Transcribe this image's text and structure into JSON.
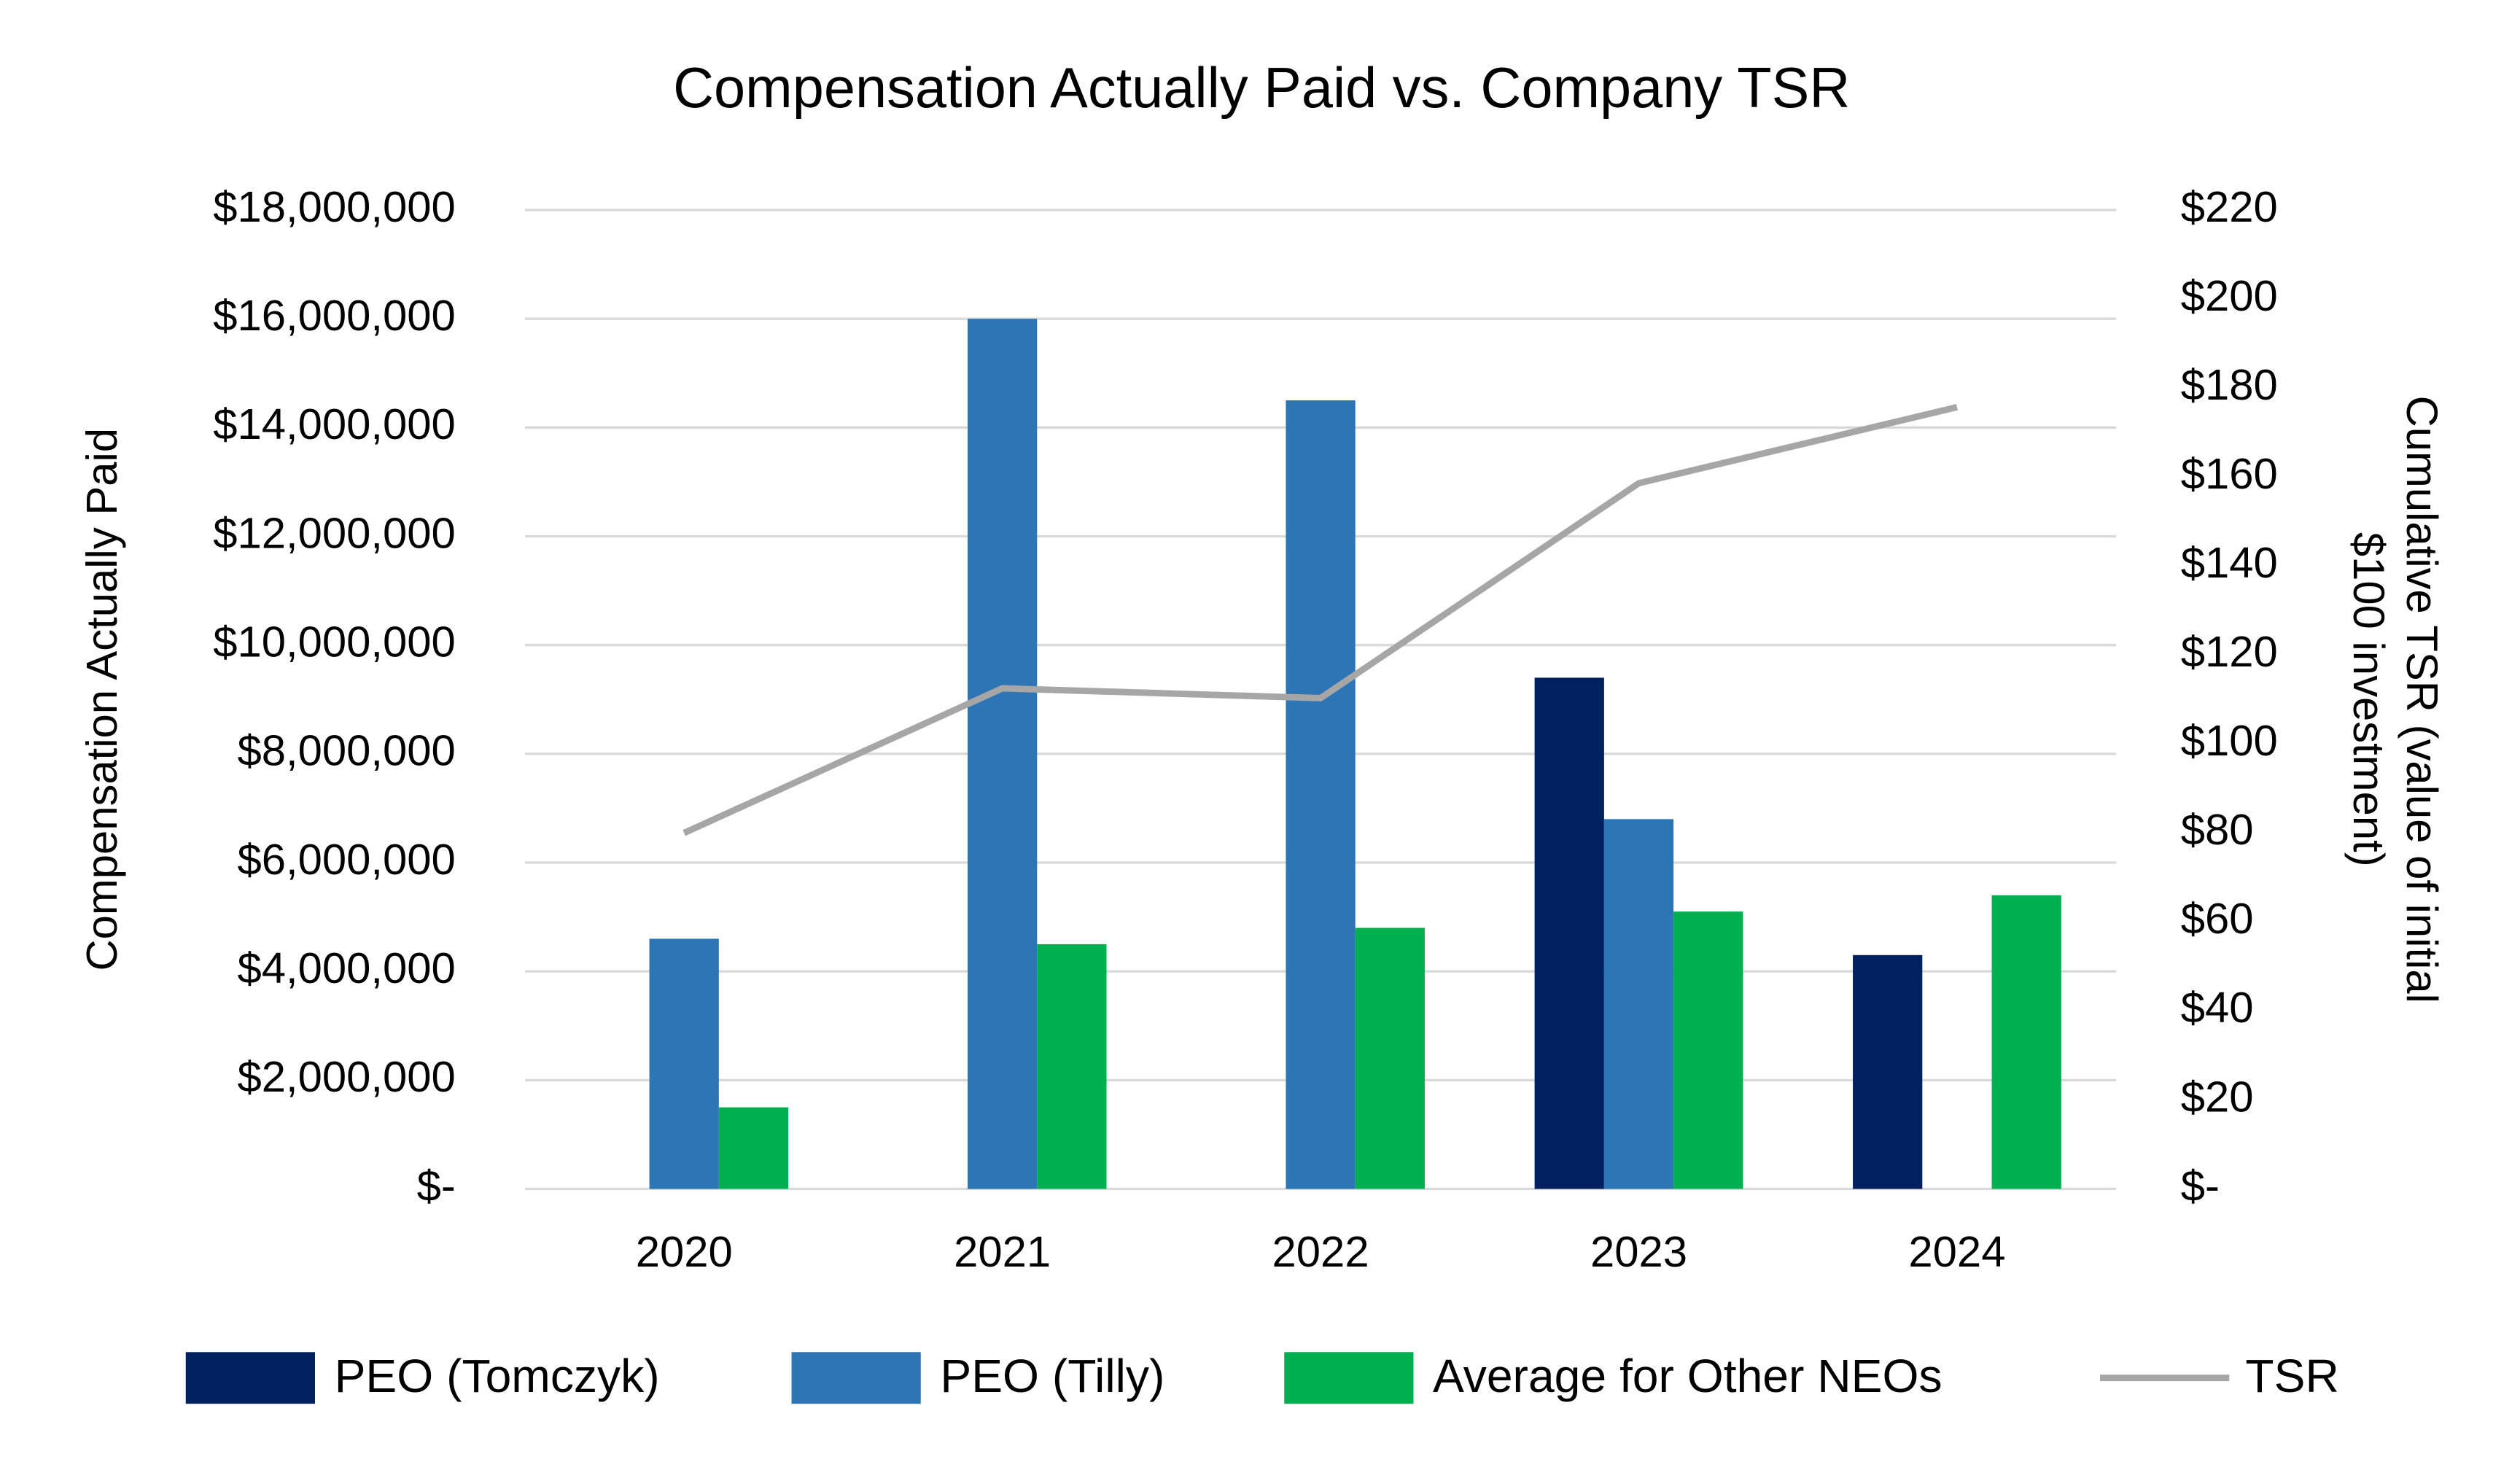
{
  "chart_data": {
    "type": "bar",
    "title": "Compensation Actually Paid vs. Company TSR",
    "y_label": "Compensation Actually Paid",
    "y2_label": "Cumulative TSR (value of initial $100 investment)",
    "categories": [
      "2020",
      "2021",
      "2022",
      "2023",
      "2024"
    ],
    "series": [
      {
        "name": "PEO (Tomczyk)",
        "type": "bar",
        "color": "#002060",
        "values": [
          null,
          null,
          null,
          9400000,
          4300000
        ]
      },
      {
        "name": "PEO (Tilly)",
        "type": "bar",
        "color": "#2e75b6",
        "values": [
          4600000,
          16000000,
          14500000,
          6800000,
          null
        ]
      },
      {
        "name": "Average for Other NEOs",
        "type": "bar",
        "color": "#00b050",
        "values": [
          1500000,
          4500000,
          4800000,
          5100000,
          5400000
        ]
      },
      {
        "name": "TSR",
        "type": "line",
        "axis": "y2",
        "color": "#a6a6a6",
        "values": [
          80,
          112.5,
          110.3,
          158.6,
          175.7
        ]
      }
    ],
    "ylim": [
      0,
      18000000
    ],
    "yticks": [
      {
        "value": 0,
        "label": "$-"
      },
      {
        "value": 2000000,
        "label": "$2,000,000"
      },
      {
        "value": 4000000,
        "label": "$4,000,000"
      },
      {
        "value": 6000000,
        "label": "$6,000,000"
      },
      {
        "value": 8000000,
        "label": "$8,000,000"
      },
      {
        "value": 10000000,
        "label": "$10,000,000"
      },
      {
        "value": 12000000,
        "label": "$12,000,000"
      },
      {
        "value": 14000000,
        "label": "$14,000,000"
      },
      {
        "value": 16000000,
        "label": "$16,000,000"
      },
      {
        "value": 18000000,
        "label": "$18,000,000"
      }
    ],
    "y2lim": [
      0,
      220
    ],
    "y2ticks": [
      {
        "value": 0,
        "label": "$-"
      },
      {
        "value": 20,
        "label": "$20"
      },
      {
        "value": 40,
        "label": "$40"
      },
      {
        "value": 60,
        "label": "$60"
      },
      {
        "value": 80,
        "label": "$80"
      },
      {
        "value": 100,
        "label": "$100"
      },
      {
        "value": 120,
        "label": "$120"
      },
      {
        "value": 140,
        "label": "$140"
      },
      {
        "value": 160,
        "label": "$160"
      },
      {
        "value": 180,
        "label": "$180"
      },
      {
        "value": 200,
        "label": "$200"
      },
      {
        "value": 220,
        "label": "$220"
      }
    ],
    "grid": true,
    "legend": "bottom"
  }
}
